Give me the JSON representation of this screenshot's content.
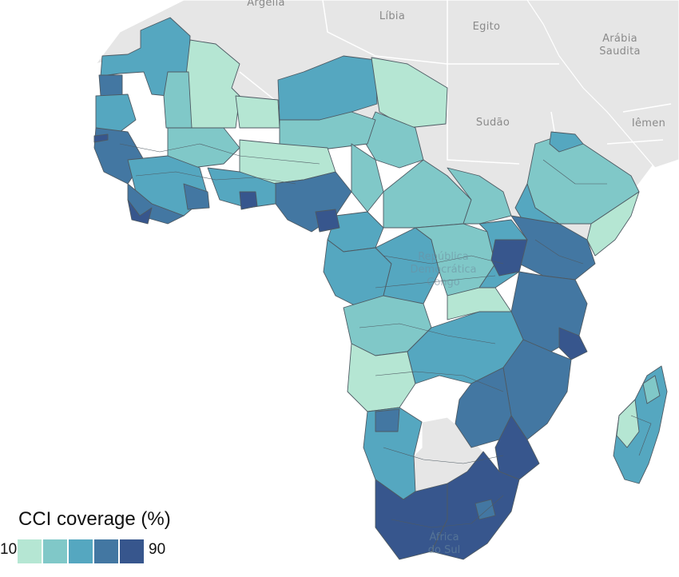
{
  "map": {
    "labels": {
      "algeria": "Argélia",
      "libya": "Líbia",
      "egypt": "Egito",
      "saudi_arabia_1": "Arábia",
      "saudi_arabia_2": "Saudita",
      "sudan": "Sudão",
      "yemen": "Iêmen",
      "drc_1": "República",
      "drc_2": "Democrática",
      "drc_3": "Congo",
      "south_africa_1": "África",
      "south_africa_2": "do Sul"
    },
    "colors": {
      "ocean": "#ffffff",
      "no_data_land": "#e6e6e6",
      "border": "#4e5a63",
      "no_data_border": "#ffffff"
    }
  },
  "legend": {
    "title": "CCI coverage (%)",
    "min_label": "10",
    "max_label": "90",
    "scale": [
      "#b5e6d3",
      "#80c8c8",
      "#55a7c0",
      "#4377a2",
      "#37568d"
    ]
  }
}
